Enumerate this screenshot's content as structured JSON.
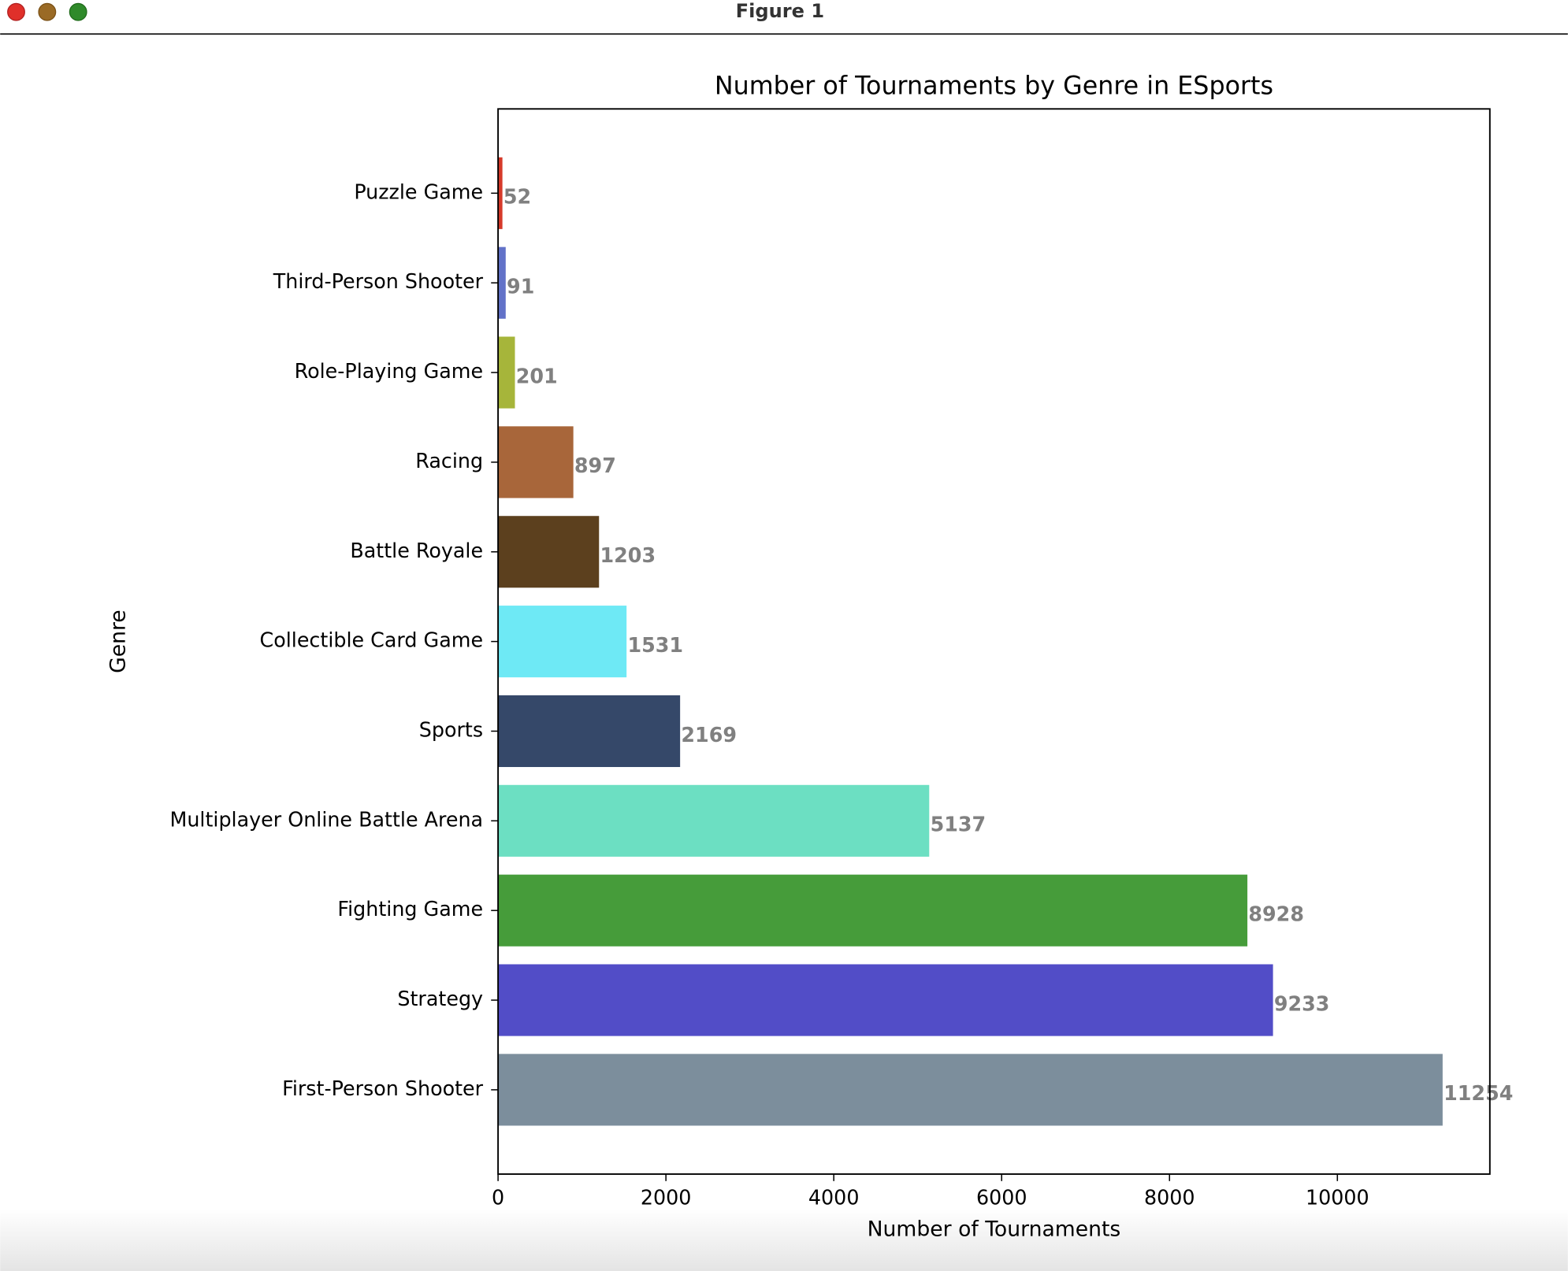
{
  "window": {
    "title": "Figure 1"
  },
  "chart_data": {
    "type": "barh",
    "title": "Number of Tournaments by Genre in ESports",
    "x_label": "Number of Tournaments",
    "y_label": "Genre",
    "categories": [
      "First-Person Shooter",
      "Strategy",
      "Fighting Game",
      "Multiplayer Online Battle Arena",
      "Sports",
      "Collectible Card Game",
      "Battle Royale",
      "Racing",
      "Role-Playing Game",
      "Third-Person Shooter",
      "Puzzle Game"
    ],
    "values": [
      11254,
      9233,
      8928,
      5137,
      2169,
      1531,
      1203,
      897,
      201,
      91,
      52
    ],
    "colors": [
      "#7c8e9c",
      "#524dc7",
      "#469c3a",
      "#6cdfc2",
      "#354869",
      "#6ee9f5",
      "#5c401e",
      "#a8663a",
      "#a6b53a",
      "#6272c8",
      "#d63a2a"
    ],
    "xlim": [
      0,
      11816.7
    ],
    "xticks": [
      0,
      2000,
      4000,
      6000,
      8000,
      10000
    ],
    "value_label_color": "#808080"
  }
}
